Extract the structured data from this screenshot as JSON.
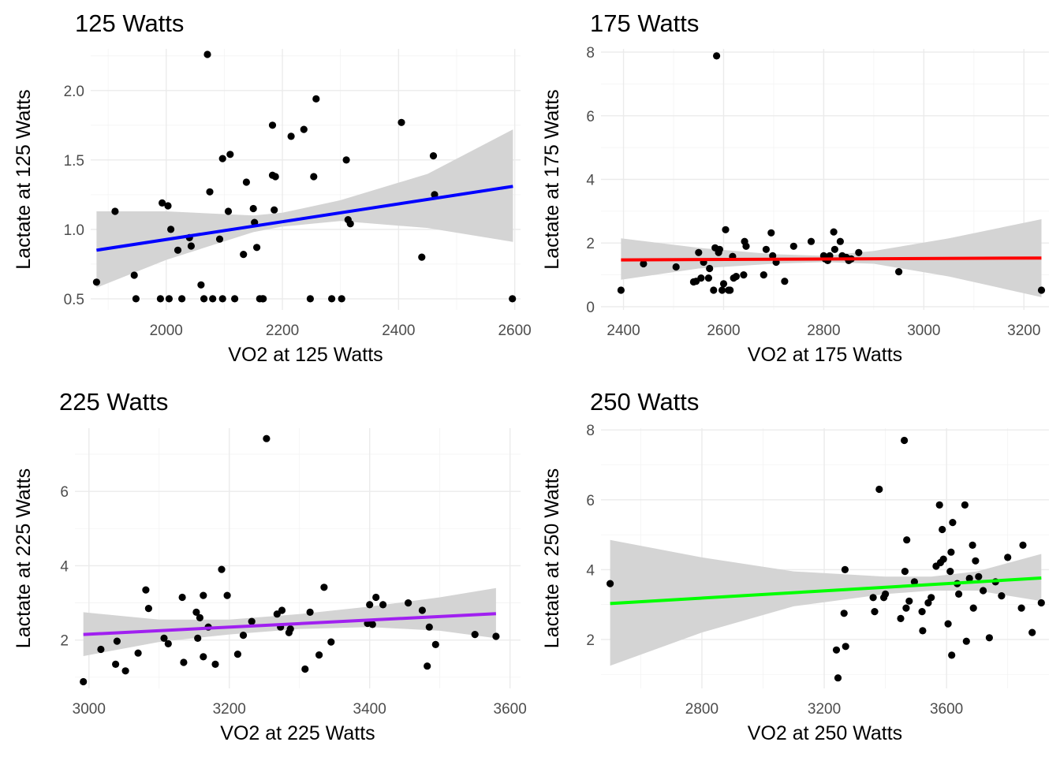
{
  "chart_data": [
    {
      "type": "scatter",
      "title": "125 Watts",
      "xlabel": "VO2 at 125 Watts",
      "ylabel": "Lactate at 125 Watts",
      "xlim": [
        1870,
        2610
      ],
      "ylim": [
        0.42,
        2.3
      ],
      "xticks": [
        2000,
        2200,
        2400,
        2600
      ],
      "yticks": [
        0.5,
        1.0,
        1.5,
        2.0
      ],
      "xtick_labels": [
        "2000",
        "2200",
        "2400",
        "2600"
      ],
      "ytick_labels": [
        "0.5",
        "1.0",
        "1.5",
        "2.0"
      ],
      "grid": true,
      "line_color": "#0000ff",
      "fit": {
        "x": [
          1880,
          2597
        ],
        "y": [
          0.85,
          1.31
        ]
      },
      "band": {
        "x": [
          1880,
          2000,
          2150,
          2200,
          2300,
          2450,
          2597
        ],
        "lower": [
          0.58,
          0.78,
          0.98,
          1.02,
          1.06,
          1.01,
          0.91
        ],
        "upper": [
          1.13,
          1.13,
          1.1,
          1.12,
          1.21,
          1.4,
          1.72
        ]
      },
      "points": {
        "x": [
          1880,
          1912,
          1945,
          1948,
          1990,
          1993,
          2005,
          2003,
          2008,
          2020,
          2027,
          2040,
          2043,
          2060,
          2065,
          2071,
          2075,
          2080,
          2092,
          2097,
          2097,
          2107,
          2110,
          2118,
          2133,
          2138,
          2150,
          2152,
          2156,
          2161,
          2166,
          2167,
          2183,
          2183,
          2186,
          2188,
          2215,
          2237,
          2248,
          2254,
          2258,
          2285,
          2302,
          2310,
          2313,
          2317,
          2405,
          2440,
          2460,
          2462,
          2596
        ],
        "y": [
          0.62,
          1.13,
          0.67,
          0.5,
          0.5,
          1.19,
          0.5,
          1.17,
          1.0,
          0.85,
          0.5,
          0.94,
          0.88,
          0.6,
          0.5,
          2.26,
          1.27,
          0.5,
          0.93,
          1.51,
          0.5,
          1.13,
          1.54,
          0.5,
          0.82,
          1.34,
          1.15,
          1.05,
          0.87,
          0.5,
          0.5,
          0.5,
          1.75,
          1.39,
          1.14,
          1.38,
          1.67,
          1.72,
          0.5,
          1.38,
          1.94,
          0.5,
          0.5,
          1.5,
          1.07,
          1.04,
          1.77,
          0.8,
          1.53,
          1.25,
          0.5
        ]
      }
    },
    {
      "type": "scatter",
      "title": "175 Watts",
      "xlabel": "VO2 at 175 Watts",
      "ylabel": "Lactate at 175 Watts",
      "xlim": [
        2355,
        3250
      ],
      "ylim": [
        -0.1,
        8.1
      ],
      "xticks": [
        2400,
        2600,
        2800,
        3000,
        3200
      ],
      "yticks": [
        0,
        2,
        4,
        6,
        8
      ],
      "xtick_labels": [
        "2400",
        "2600",
        "2800",
        "3000",
        "3200"
      ],
      "ytick_labels": [
        "0",
        "2",
        "4",
        "6",
        "8"
      ],
      "grid": true,
      "line_color": "#ff0000",
      "fit": {
        "x": [
          2395,
          3235
        ],
        "y": [
          1.47,
          1.53
        ]
      },
      "band": {
        "x": [
          2395,
          2550,
          2700,
          2800,
          2900,
          3050,
          3235
        ],
        "lower": [
          0.85,
          1.2,
          1.35,
          1.4,
          1.35,
          0.95,
          0.3
        ],
        "upper": [
          2.15,
          1.85,
          1.65,
          1.6,
          1.75,
          2.15,
          2.75
        ]
      },
      "points": {
        "x": [
          2395,
          2440,
          2505,
          2540,
          2545,
          2550,
          2555,
          2560,
          2570,
          2572,
          2580,
          2583,
          2586,
          2590,
          2592,
          2597,
          2600,
          2604,
          2610,
          2613,
          2618,
          2620,
          2625,
          2640,
          2642,
          2645,
          2680,
          2685,
          2695,
          2698,
          2705,
          2722,
          2740,
          2775,
          2800,
          2803,
          2808,
          2812,
          2820,
          2822,
          2833,
          2837,
          2845,
          2850,
          2855,
          2870,
          2950,
          3235
        ],
        "y": [
          0.52,
          1.35,
          1.25,
          0.78,
          0.8,
          1.7,
          0.9,
          1.4,
          0.9,
          1.2,
          0.52,
          1.85,
          7.88,
          1.7,
          1.8,
          0.52,
          0.72,
          2.42,
          0.52,
          0.52,
          1.58,
          0.9,
          0.95,
          1.0,
          2.05,
          1.9,
          1.0,
          1.8,
          2.32,
          1.6,
          1.4,
          0.8,
          1.9,
          2.05,
          1.6,
          1.5,
          1.45,
          1.6,
          2.35,
          1.8,
          2.05,
          1.6,
          1.55,
          1.45,
          1.5,
          1.7,
          1.1,
          0.52
        ]
      }
    },
    {
      "type": "scatter",
      "title": "225 Watts",
      "xlabel": "VO2 at 225 Watts",
      "ylabel": "Lactate at 225 Watts",
      "xlim": [
        2980,
        3615
      ],
      "ylim": [
        0.7,
        7.7
      ],
      "xticks": [
        3000,
        3200,
        3400,
        3600
      ],
      "yticks": [
        2,
        4,
        6
      ],
      "xtick_labels": [
        "3000",
        "3200",
        "3400",
        "3600"
      ],
      "ytick_labels": [
        "2",
        "4",
        "6"
      ],
      "grid": true,
      "line_color": "#a020f0",
      "fit": {
        "x": [
          2992,
          3580
        ],
        "y": [
          2.15,
          2.71
        ]
      },
      "band": {
        "x": [
          2992,
          3100,
          3200,
          3300,
          3400,
          3500,
          3580
        ],
        "lower": [
          1.57,
          1.95,
          2.15,
          2.3,
          2.35,
          2.25,
          2.05
        ],
        "upper": [
          2.75,
          2.55,
          2.55,
          2.7,
          2.9,
          3.15,
          3.4
        ]
      },
      "points": {
        "x": [
          2992,
          3017,
          3038,
          3040,
          3052,
          3070,
          3081,
          3085,
          3107,
          3113,
          3133,
          3135,
          3153,
          3155,
          3158,
          3163,
          3163,
          3170,
          3180,
          3189,
          3197,
          3212,
          3220,
          3232,
          3253,
          3268,
          3273,
          3275,
          3285,
          3287,
          3308,
          3315,
          3328,
          3335,
          3345,
          3397,
          3400,
          3404,
          3409,
          3419,
          3455,
          3475,
          3482,
          3485,
          3494,
          3550,
          3580
        ],
        "y": [
          0.88,
          1.75,
          1.35,
          1.97,
          1.17,
          1.65,
          3.35,
          2.85,
          2.05,
          1.9,
          3.15,
          1.4,
          2.75,
          2.05,
          2.6,
          1.55,
          3.2,
          2.35,
          1.35,
          3.9,
          3.2,
          1.62,
          2.13,
          2.5,
          7.42,
          2.7,
          2.35,
          2.8,
          2.2,
          2.3,
          1.22,
          2.75,
          1.6,
          3.42,
          1.95,
          2.45,
          2.95,
          2.42,
          3.15,
          2.95,
          3.0,
          2.8,
          1.3,
          2.35,
          1.88,
          2.15,
          2.1
        ]
      }
    },
    {
      "type": "scatter",
      "title": "250 Watts",
      "xlabel": "VO2 at 250 Watts",
      "ylabel": "Lactate at 250 Watts",
      "xlim": [
        2470,
        3935
      ],
      "ylim": [
        0.6,
        8.05
      ],
      "xticks": [
        2800,
        3200,
        3600
      ],
      "yticks": [
        2,
        4,
        6,
        8
      ],
      "xtick_labels": [
        "2800",
        "3200",
        "3600"
      ],
      "ytick_labels": [
        "2",
        "4",
        "6",
        "8"
      ],
      "grid": true,
      "line_color": "#00ff00",
      "fit": {
        "x": [
          2500,
          3910
        ],
        "y": [
          3.03,
          3.76
        ]
      },
      "band": {
        "x": [
          2500,
          2800,
          3100,
          3400,
          3550,
          3700,
          3910
        ],
        "lower": [
          1.25,
          2.2,
          2.95,
          3.3,
          3.4,
          3.4,
          3.1
        ],
        "upper": [
          4.85,
          4.35,
          3.95,
          3.8,
          3.8,
          3.95,
          4.45
        ]
      },
      "points": {
        "x": [
          2500,
          3240,
          3245,
          3265,
          3268,
          3270,
          3360,
          3365,
          3380,
          3395,
          3400,
          3450,
          3462,
          3464,
          3468,
          3470,
          3478,
          3495,
          3520,
          3522,
          3540,
          3550,
          3566,
          3577,
          3580,
          3586,
          3590,
          3605,
          3612,
          3615,
          3617,
          3620,
          3635,
          3640,
          3660,
          3665,
          3675,
          3685,
          3688,
          3695,
          3705,
          3720,
          3740,
          3760,
          3780,
          3800,
          3845,
          3850,
          3880,
          3910
        ],
        "y": [
          3.6,
          1.7,
          0.9,
          2.75,
          4.0,
          1.8,
          3.2,
          2.8,
          6.3,
          3.2,
          3.3,
          2.6,
          7.7,
          3.95,
          2.9,
          4.85,
          3.1,
          3.65,
          2.8,
          2.25,
          3.05,
          3.2,
          4.1,
          5.85,
          4.2,
          5.15,
          4.3,
          2.45,
          3.95,
          4.5,
          1.55,
          5.35,
          3.6,
          3.3,
          5.85,
          1.95,
          3.75,
          4.7,
          2.9,
          4.25,
          3.8,
          3.4,
          2.05,
          3.65,
          3.25,
          4.35,
          2.9,
          4.7,
          2.2,
          3.05
        ]
      }
    }
  ]
}
